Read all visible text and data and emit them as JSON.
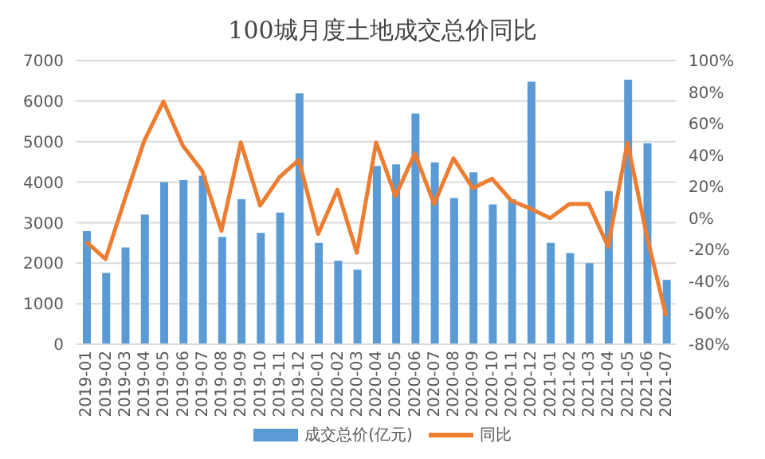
{
  "chart_data": {
    "type": "bar",
    "title": "100城月度土地成交总价同比",
    "categories": [
      "2019-01",
      "2019-02",
      "2019-03",
      "2019-04",
      "2019-05",
      "2019-06",
      "2019-07",
      "2019-08",
      "2019-09",
      "2019-10",
      "2019-11",
      "2019-12",
      "2020-01",
      "2020-02",
      "2020-03",
      "2020-04",
      "2020-05",
      "2020-06",
      "2020-07",
      "2020-08",
      "2020-09",
      "2020-10",
      "2020-11",
      "2020-12",
      "2021-01",
      "2021-02",
      "2021-03",
      "2021-04",
      "2021-05",
      "2021-06",
      "2021-07"
    ],
    "series": [
      {
        "name": "成交总价(亿元)",
        "color": "#5b9bd5",
        "values": [
          2790,
          1760,
          2390,
          3200,
          4000,
          4050,
          4160,
          2650,
          3580,
          2750,
          3250,
          6190,
          2500,
          2060,
          1840,
          4400,
          4440,
          5690,
          4490,
          3610,
          4240,
          3450,
          3580,
          6480,
          2500,
          2250,
          2000,
          3780,
          6530,
          4960,
          1590
        ]
      },
      {
        "name": "同比",
        "type": "line",
        "axis": "y2",
        "color": "#ed7d31",
        "values": [
          -15,
          -26,
          12,
          49,
          74,
          46,
          30,
          -8,
          48,
          8,
          26,
          37,
          -10,
          18,
          -22,
          48,
          14,
          41,
          9,
          38,
          19,
          25,
          11,
          6,
          0,
          9,
          9,
          -18,
          48,
          -11,
          -62
        ]
      }
    ],
    "ylim": [
      0,
      7000
    ],
    "yticks": [
      0,
      1000,
      2000,
      3000,
      4000,
      5000,
      6000,
      7000
    ],
    "y2lim": [
      -80,
      100
    ],
    "y2ticks": [
      {
        "value": -80,
        "label": "-80%"
      },
      {
        "value": -60,
        "label": "-60%"
      },
      {
        "value": -40,
        "label": "-40%"
      },
      {
        "value": -20,
        "label": "-20%"
      },
      {
        "value": 0,
        "label": "0%"
      },
      {
        "value": 20,
        "label": "20%"
      },
      {
        "value": 40,
        "label": "40%"
      },
      {
        "value": 60,
        "label": "60%"
      },
      {
        "value": 80,
        "label": "80%"
      },
      {
        "value": 100,
        "label": "100%"
      }
    ],
    "grid": "y",
    "legend": "bottom",
    "marker": "none",
    "line_style": "solid"
  }
}
